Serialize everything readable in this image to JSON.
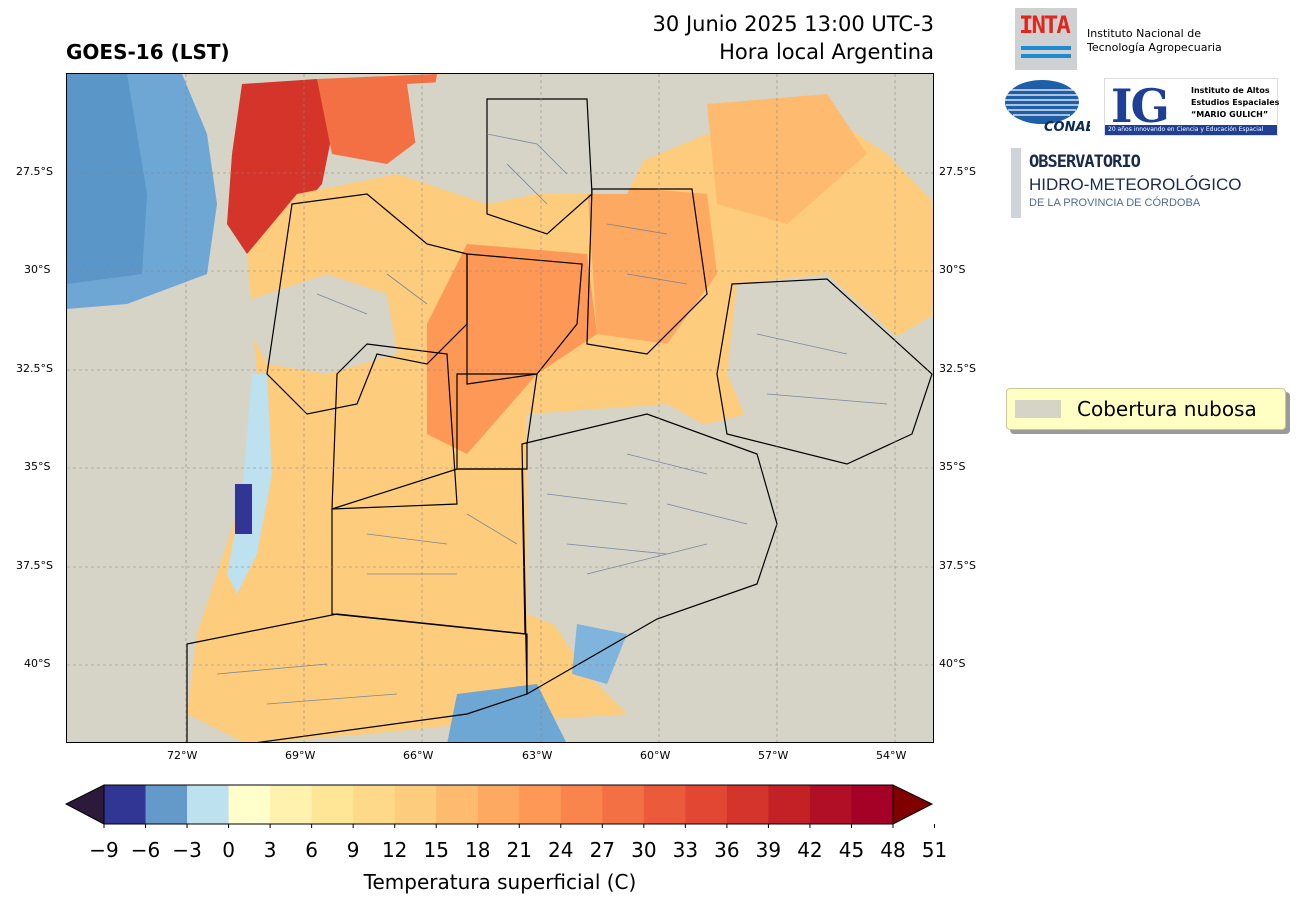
{
  "header": {
    "title": "GOES-16 (LST)",
    "date_line": "30 Junio 2025 13:00 UTC-3",
    "local_line": "Hora local Argentina"
  },
  "map": {
    "lat_ticks": [
      "27.5°S",
      "30°S",
      "32.5°S",
      "35°S",
      "37.5°S",
      "40°S"
    ],
    "lon_ticks": [
      "72°W",
      "69°W",
      "66°W",
      "63°W",
      "60°W",
      "57°W",
      "54°W"
    ],
    "cloud_color": "#d6d4c6"
  },
  "colorbar": {
    "label": "Temperatura superficial (C)",
    "ticks": [
      "−9",
      "−6",
      "−3",
      "0",
      "3",
      "6",
      "9",
      "12",
      "15",
      "18",
      "21",
      "24",
      "27",
      "30",
      "33",
      "36",
      "39",
      "42",
      "45",
      "48",
      "51"
    ],
    "colors": [
      "#313695",
      "#649ac9",
      "#bde1ee",
      "#ffffcc",
      "#fff2ae",
      "#ffe696",
      "#ffd98a",
      "#fecc7d",
      "#febb6f",
      "#fea962",
      "#fd9856",
      "#fa854c",
      "#f37044",
      "#ec5a3c",
      "#e24733",
      "#d5342b",
      "#c32125",
      "#b00f26",
      "#a50026"
    ],
    "under_color": "#2d1a3a",
    "over_color": "#800000"
  },
  "legend": {
    "label": "Cobertura nubosa"
  },
  "logos": {
    "inta": {
      "mark": "INTA",
      "name_line1": "Instituto Nacional de",
      "name_line2": "Tecnología Agropecuaria"
    },
    "conae": {
      "mark": "CONAE"
    },
    "ig": {
      "letters": "IG",
      "line1": "Instituto de Altos",
      "line2": "Estudios Espaciales",
      "line3": "“MARIO GULICH”",
      "bar": "20 años innovando en Ciencia y Educación Espacial"
    },
    "observatorio": {
      "line1": "OBSERVATORIO",
      "line2": "HIDRO-METEOROLÓGICO",
      "line3": "DE LA PROVINCIA DE CÓRDOBA"
    }
  }
}
